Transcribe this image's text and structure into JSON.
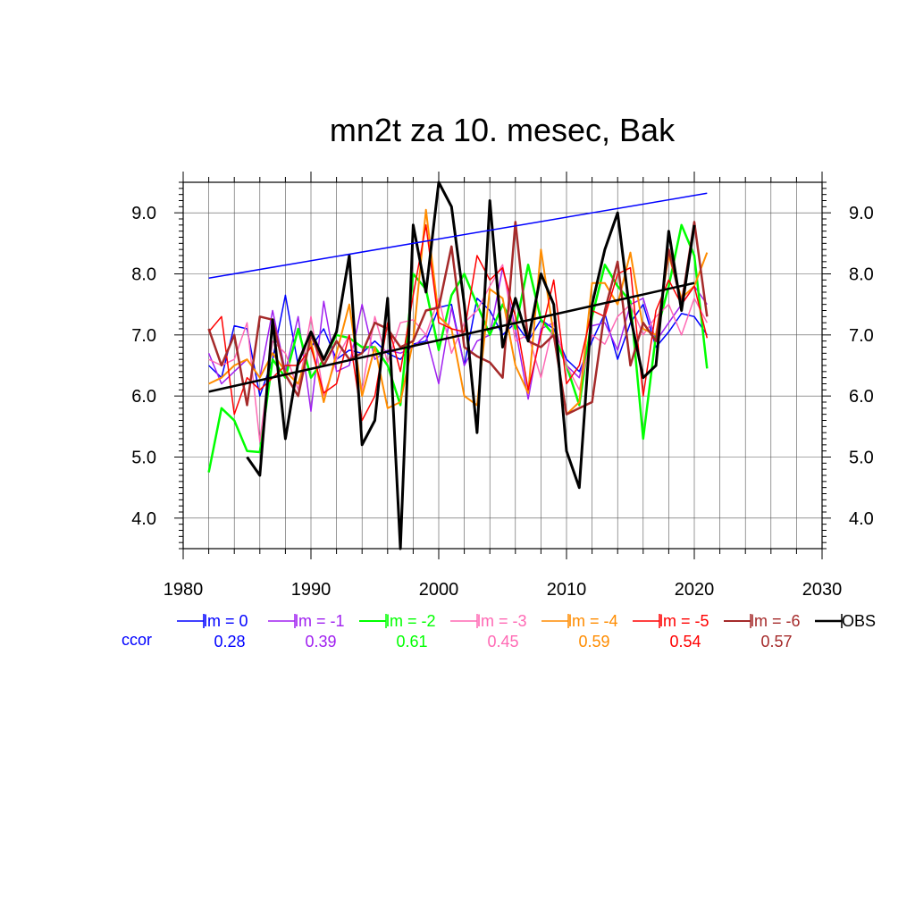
{
  "chart_data": {
    "type": "line",
    "title": "mn2t za 10. mesec, Bak",
    "xlim": [
      1980,
      2030
    ],
    "ylim": [
      3.5,
      9.5
    ],
    "x_ticks": [
      "1980",
      "1990",
      "2000",
      "2010",
      "2020",
      "2030"
    ],
    "y_ticks": [
      "4.0",
      "5.0",
      "6.0",
      "7.0",
      "8.0",
      "9.0"
    ],
    "grid": true,
    "legend_position": "bottom",
    "ccor_label": "ccor",
    "series": [
      {
        "name": "lm = 0",
        "color": "#0000ff",
        "ccor": "0.28",
        "width": 1.5,
        "x": [
          1982,
          1983,
          1984,
          1985,
          1986,
          1987,
          1988,
          1989,
          1990,
          1991,
          1992,
          1993,
          1994,
          1995,
          1996,
          1997,
          1998,
          1999,
          2000,
          2001,
          2002,
          2003,
          2004,
          2005,
          2006,
          2007,
          2008,
          2009,
          2010,
          2011,
          2012,
          2013,
          2014,
          2015,
          2016,
          2017,
          2018,
          2019,
          2020,
          2021
        ],
        "y": [
          6.5,
          6.3,
          7.15,
          7.1,
          6.0,
          6.6,
          7.65,
          6.5,
          6.8,
          7.1,
          6.6,
          6.75,
          6.7,
          6.9,
          6.7,
          6.6,
          6.85,
          6.9,
          7.45,
          7.5,
          6.5,
          7.6,
          7.4,
          7.0,
          7.2,
          6.9,
          7.25,
          7.1,
          6.6,
          6.4,
          6.9,
          7.35,
          6.6,
          7.2,
          7.5,
          6.8,
          7.05,
          7.35,
          7.3,
          7.0
        ]
      },
      {
        "name": "lm = -1",
        "color": "#a020f0",
        "ccor": "0.39",
        "width": 1.5,
        "x": [
          1982,
          1983,
          1984,
          1985,
          1986,
          1987,
          1988,
          1989,
          1990,
          1991,
          1992,
          1993,
          1994,
          1995,
          1996,
          1997,
          1998,
          1999,
          2000,
          2001,
          2002,
          2003,
          2004,
          2005,
          2006,
          2007,
          2008,
          2009,
          2010,
          2011,
          2012,
          2013,
          2014,
          2015,
          2016,
          2017,
          2018,
          2019,
          2020,
          2021
        ],
        "y": [
          6.7,
          6.2,
          6.4,
          6.6,
          6.3,
          7.4,
          6.4,
          7.3,
          5.75,
          7.55,
          6.4,
          6.5,
          7.5,
          6.6,
          6.75,
          6.7,
          6.8,
          7.0,
          6.2,
          7.45,
          6.5,
          6.9,
          7.0,
          8.1,
          7.1,
          5.95,
          7.1,
          7.2,
          6.5,
          6.3,
          7.15,
          7.2,
          6.75,
          7.5,
          7.6,
          6.9,
          7.2,
          7.5,
          7.8,
          7.5
        ]
      },
      {
        "name": "lm = -2",
        "color": "#00ff00",
        "ccor": "0.61",
        "width": 2.5,
        "x": [
          1982,
          1983,
          1984,
          1985,
          1986,
          1987,
          1988,
          1989,
          1990,
          1991,
          1992,
          1993,
          1994,
          1995,
          1996,
          1997,
          1998,
          1999,
          2000,
          2001,
          2002,
          2003,
          2004,
          2005,
          2006,
          2007,
          2008,
          2009,
          2010,
          2011,
          2012,
          2013,
          2014,
          2015,
          2016,
          2017,
          2018,
          2019,
          2020,
          2021
        ],
        "y": [
          4.75,
          5.8,
          5.6,
          5.1,
          5.08,
          6.6,
          6.3,
          7.1,
          6.3,
          6.6,
          7.0,
          6.95,
          6.8,
          6.8,
          6.5,
          5.85,
          8.0,
          7.75,
          6.75,
          7.65,
          8.0,
          7.5,
          7.0,
          7.5,
          7.1,
          8.15,
          7.25,
          7.0,
          6.5,
          5.85,
          7.3,
          8.15,
          7.8,
          7.55,
          5.3,
          7.0,
          7.8,
          8.8,
          8.3,
          6.45
        ]
      },
      {
        "name": "lm = -3",
        "color": "#ff69b4",
        "ccor": "0.45",
        "width": 1.5,
        "x": [
          1982,
          1983,
          1984,
          1985,
          1986,
          1987,
          1988,
          1989,
          1990,
          1991,
          1992,
          1993,
          1994,
          1995,
          1996,
          1997,
          1998,
          1999,
          2000,
          2001,
          2002,
          2003,
          2004,
          2005,
          2006,
          2007,
          2008,
          2009,
          2010,
          2011,
          2012,
          2013,
          2014,
          2015,
          2016,
          2017,
          2018,
          2019,
          2020,
          2021
        ],
        "y": [
          6.6,
          6.5,
          6.6,
          7.2,
          5.25,
          6.9,
          6.7,
          6.1,
          7.3,
          6.0,
          6.6,
          7.0,
          6.1,
          7.3,
          6.55,
          7.2,
          7.25,
          7.0,
          7.6,
          6.7,
          7.2,
          7.4,
          7.8,
          8.15,
          6.9,
          7.0,
          6.3,
          7.2,
          6.5,
          6.1,
          7.0,
          6.85,
          7.3,
          7.5,
          7.0,
          7.3,
          7.5,
          7.0,
          7.6,
          7.2
        ]
      },
      {
        "name": "lm = -4",
        "color": "#ff8c00",
        "ccor": "0.59",
        "width": 2.0,
        "x": [
          1982,
          1983,
          1984,
          1985,
          1986,
          1987,
          1988,
          1989,
          1990,
          1991,
          1992,
          1993,
          1994,
          1995,
          1996,
          1997,
          1998,
          1999,
          2000,
          2001,
          2002,
          2003,
          2004,
          2005,
          2006,
          2007,
          2008,
          2009,
          2010,
          2011,
          2012,
          2013,
          2014,
          2015,
          2016,
          2017,
          2018,
          2019,
          2020,
          2021
        ],
        "y": [
          6.2,
          6.3,
          6.5,
          6.6,
          6.3,
          6.7,
          6.4,
          6.2,
          6.9,
          5.9,
          6.7,
          7.5,
          6.0,
          6.8,
          5.8,
          5.9,
          6.9,
          9.05,
          7.3,
          7.1,
          6.0,
          5.85,
          7.75,
          7.6,
          6.5,
          6.05,
          8.4,
          7.0,
          5.7,
          5.9,
          7.85,
          7.85,
          7.5,
          8.35,
          7.1,
          7.0,
          8.3,
          7.6,
          7.8,
          8.35
        ]
      },
      {
        "name": "lm = -5",
        "color": "#ff0000",
        "ccor": "0.54",
        "width": 1.5,
        "x": [
          1982,
          1983,
          1984,
          1985,
          1986,
          1987,
          1988,
          1989,
          1990,
          1991,
          1992,
          1993,
          1994,
          1995,
          1996,
          1997,
          1998,
          1999,
          2000,
          2001,
          2002,
          2003,
          2004,
          2005,
          2006,
          2007,
          2008,
          2009,
          2010,
          2011,
          2012,
          2013,
          2014,
          2015,
          2016,
          2017,
          2018,
          2019,
          2020,
          2021
        ],
        "y": [
          7.05,
          7.3,
          5.7,
          6.3,
          6.1,
          6.3,
          6.5,
          6.5,
          6.8,
          6.05,
          6.2,
          7.0,
          5.6,
          6.0,
          7.2,
          6.4,
          7.65,
          8.8,
          7.2,
          7.1,
          7.05,
          8.3,
          7.9,
          8.1,
          7.3,
          6.1,
          7.0,
          7.9,
          6.2,
          6.5,
          7.4,
          7.3,
          8.0,
          8.1,
          6.0,
          7.4,
          7.9,
          7.5,
          7.8,
          6.95
        ]
      },
      {
        "name": "lm = -6",
        "color": "#a52a2a",
        "ccor": "0.57",
        "width": 2.5,
        "x": [
          1982,
          1983,
          1984,
          1985,
          1986,
          1987,
          1988,
          1989,
          1990,
          1991,
          1992,
          1993,
          1994,
          1995,
          1996,
          1997,
          1998,
          1999,
          2000,
          2001,
          2002,
          2003,
          2004,
          2005,
          2006,
          2007,
          2008,
          2009,
          2010,
          2011,
          2012,
          2013,
          2014,
          2015,
          2016,
          2017,
          2018,
          2019,
          2020,
          2021
        ],
        "y": [
          7.1,
          6.5,
          7.0,
          5.85,
          7.3,
          7.25,
          6.35,
          6.0,
          7.0,
          6.5,
          6.9,
          6.6,
          6.7,
          7.2,
          7.1,
          6.8,
          6.9,
          7.4,
          7.45,
          8.45,
          6.8,
          6.65,
          6.55,
          6.3,
          8.85,
          6.9,
          6.8,
          7.0,
          5.7,
          5.8,
          5.9,
          7.4,
          8.2,
          6.5,
          7.2,
          6.9,
          8.4,
          7.5,
          8.85,
          7.3
        ]
      },
      {
        "name": "OBS",
        "color": "#000000",
        "width": 3.0,
        "x": [
          1985,
          1986,
          1987,
          1988,
          1989,
          1990,
          1991,
          1992,
          1993,
          1994,
          1995,
          1996,
          1997,
          1998,
          1999,
          2000,
          2001,
          2002,
          2003,
          2004,
          2005,
          2006,
          2007,
          2008,
          2009,
          2010,
          2011,
          2012,
          2013,
          2014,
          2015,
          2016,
          2017,
          2018,
          2019,
          2020
        ],
        "y": [
          5.0,
          4.7,
          7.25,
          5.3,
          6.55,
          7.05,
          6.6,
          7.05,
          8.3,
          5.2,
          5.6,
          7.6,
          3.5,
          8.8,
          7.7,
          9.5,
          9.1,
          7.5,
          5.4,
          9.2,
          6.8,
          7.6,
          6.9,
          8.0,
          7.5,
          5.1,
          4.5,
          7.5,
          8.4,
          9.0,
          7.3,
          6.3,
          6.5,
          8.7,
          7.4,
          8.8
        ]
      }
    ],
    "trend_lines": [
      {
        "name": "lm = 0 trend",
        "color": "#0000ff",
        "width": 1.5,
        "x": [
          1982,
          2021
        ],
        "y": [
          7.93,
          9.32
        ]
      },
      {
        "name": "OBS trend",
        "color": "#000000",
        "width": 2.5,
        "x": [
          1982,
          2020
        ],
        "y": [
          6.07,
          7.85
        ]
      }
    ]
  }
}
